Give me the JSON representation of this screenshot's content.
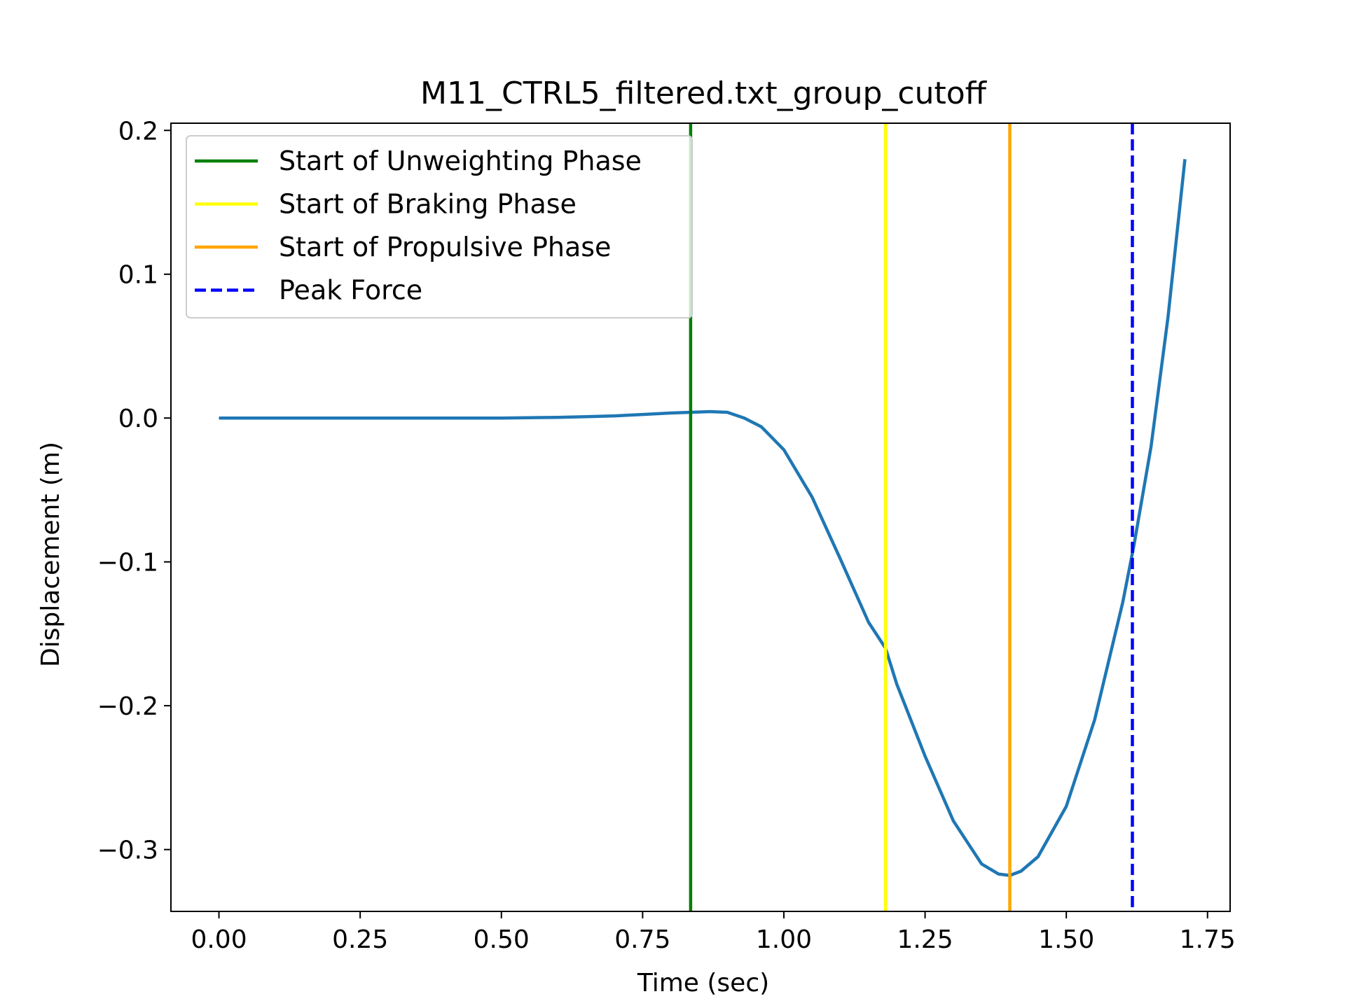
{
  "chart_data": {
    "type": "line",
    "title": "M11_CTRL5_filtered.txt_group_cutoff",
    "xlabel": "Time (sec)",
    "ylabel": "Displacement (m)",
    "xlim": [
      -0.085,
      1.79
    ],
    "ylim": [
      -0.343,
      0.205
    ],
    "xticks": [
      0.0,
      0.25,
      0.5,
      0.75,
      1.0,
      1.25,
      1.5,
      1.75
    ],
    "xtick_labels": [
      "0.00",
      "0.25",
      "0.50",
      "0.75",
      "1.00",
      "1.25",
      "1.50",
      "1.75"
    ],
    "yticks": [
      0.2,
      0.1,
      0.0,
      -0.1,
      -0.2,
      -0.3
    ],
    "ytick_labels": [
      "0.2",
      "0.1",
      "0.0",
      "−0.1",
      "−0.2",
      "−0.3"
    ],
    "grid": false,
    "legend_position": "top-left",
    "series": [
      {
        "name": "",
        "color": "#1f77b4",
        "x": [
          0.0,
          0.1,
          0.2,
          0.3,
          0.4,
          0.5,
          0.6,
          0.65,
          0.7,
          0.75,
          0.8,
          0.835,
          0.87,
          0.9,
          0.93,
          0.96,
          1.0,
          1.05,
          1.1,
          1.15,
          1.18,
          1.2,
          1.25,
          1.3,
          1.35,
          1.38,
          1.4,
          1.42,
          1.45,
          1.5,
          1.55,
          1.6,
          1.62,
          1.65,
          1.68,
          1.71
        ],
        "y": [
          0.0,
          0.0,
          0.0,
          0.0,
          0.0,
          0.0,
          0.0005,
          0.001,
          0.0015,
          0.0025,
          0.0035,
          0.004,
          0.0045,
          0.004,
          0.0,
          -0.006,
          -0.022,
          -0.055,
          -0.098,
          -0.142,
          -0.16,
          -0.185,
          -0.235,
          -0.28,
          -0.31,
          -0.317,
          -0.318,
          -0.315,
          -0.305,
          -0.27,
          -0.21,
          -0.128,
          -0.088,
          -0.02,
          0.07,
          0.18
        ]
      }
    ],
    "vlines": [
      {
        "name": "Start of Unweighting Phase",
        "x": 0.835,
        "color": "#008000",
        "style": "solid"
      },
      {
        "name": "Start of Braking Phase",
        "x": 1.18,
        "color": "#ffff00",
        "style": "solid"
      },
      {
        "name": "Start of Propulsive Phase",
        "x": 1.4,
        "color": "#ffa500",
        "style": "solid"
      },
      {
        "name": "Peak Force",
        "x": 1.617,
        "color": "#0000ff",
        "style": "dashed"
      }
    ]
  }
}
